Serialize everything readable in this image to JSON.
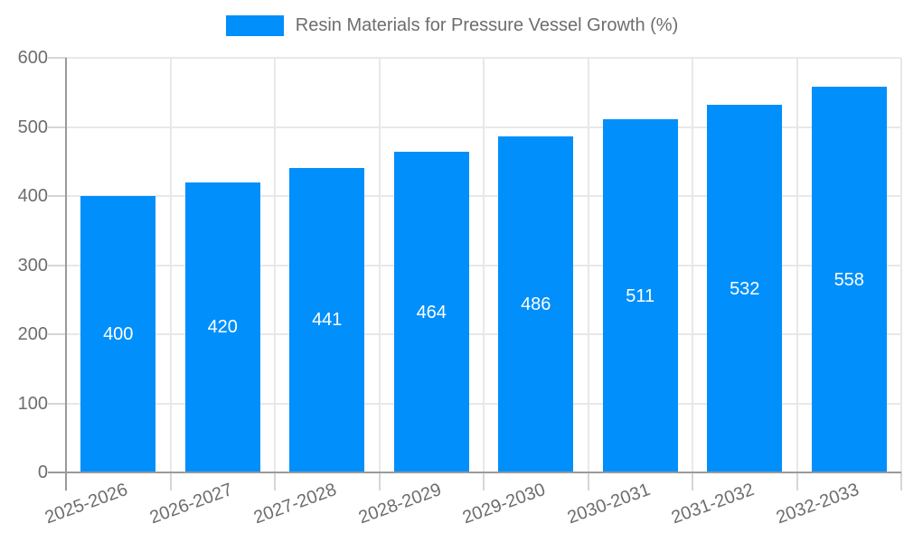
{
  "chart_data": {
    "type": "bar",
    "title": "Resin Materials for Pressure Vessel Growth (%)",
    "categories": [
      "2025-2026",
      "2026-2027",
      "2027-2028",
      "2028-2029",
      "2029-2030",
      "2030-2031",
      "2031-2032",
      "2032-2033"
    ],
    "values": [
      400,
      420,
      441,
      464,
      486,
      511,
      532,
      558
    ],
    "series_name": "Resin Materials for Pressure Vessel Growth (%)",
    "xlabel": "",
    "ylabel": "",
    "ylim": [
      0,
      600
    ],
    "yticks": [
      0,
      100,
      200,
      300,
      400,
      500,
      600
    ],
    "grid": true,
    "legend_position": "top-center",
    "bar_color": "#008FFB",
    "bar_value_label_color": "#ffffff",
    "bar_value_label_position": "inside-center"
  }
}
